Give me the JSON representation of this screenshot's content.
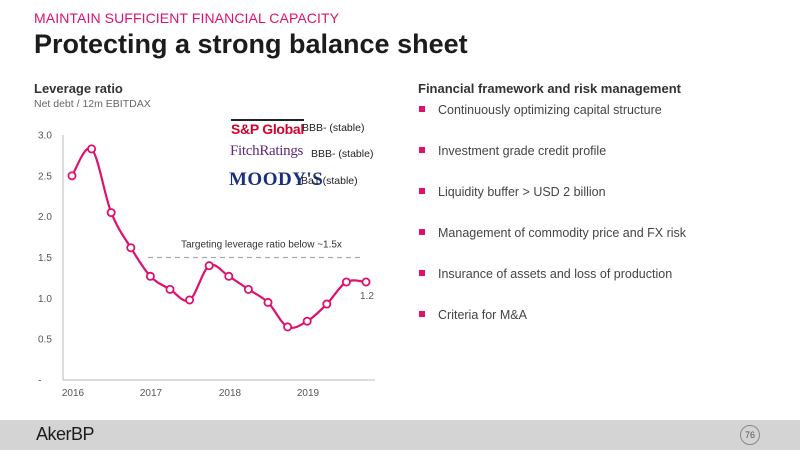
{
  "header": {
    "kicker": "MAINTAIN SUFFICIENT FINANCIAL CAPACITY",
    "title": "Protecting a strong balance sheet"
  },
  "chart_data": {
    "type": "line",
    "title": "Leverage ratio",
    "subtitle": "Net debt / 12m EBITDAX",
    "x_tick_labels": [
      "2016",
      "2017",
      "2018",
      "2019"
    ],
    "y_tick_labels": [
      "-",
      "0.5",
      "1.0",
      "1.5",
      "2.0",
      "2.5",
      "3.0"
    ],
    "ylim": [
      0,
      3.0
    ],
    "grid": false,
    "series": [
      {
        "values": [
          2.5,
          2.83,
          2.05,
          1.62,
          1.27,
          1.11,
          0.98,
          1.4,
          1.27,
          1.11,
          0.95,
          0.65,
          0.72,
          0.93,
          1.2,
          1.2
        ]
      }
    ],
    "end_label": "1.2",
    "target": {
      "value": 1.5,
      "label": "Targeting leverage ratio below ~1.5x"
    },
    "line_color": "#e0106e"
  },
  "ratings": {
    "sp": {
      "logo": "S&P Global",
      "rating": "BBB- (stable)"
    },
    "fitch": {
      "logo": "FitchRatings",
      "rating": "BBB- (stable)"
    },
    "moodys": {
      "logo": "MOODY'S",
      "rating": "Ba1 (stable)"
    }
  },
  "framework": {
    "title": "Financial framework and risk management",
    "items": [
      "Continuously optimizing capital structure",
      "Investment grade credit profile",
      "Liquidity buffer > USD 2 billion",
      "Management of commodity price and FX risk",
      "Insurance of assets and loss of production",
      "Criteria for M&A"
    ],
    "bullet_color": "#e0106e"
  },
  "footer": {
    "logo": "AkerBP",
    "page_number": "76"
  }
}
